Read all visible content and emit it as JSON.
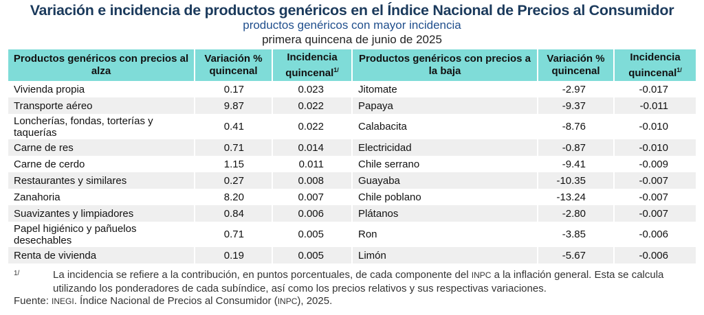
{
  "title": "Variación e incidencia de productos genéricos en el Índice Nacional de Precios al Consumidor",
  "subtitle": "productos genéricos con mayor incidencia",
  "period": "primera quincena de junio de 2025",
  "headers": {
    "up_product": "Productos genéricos con precios al alza",
    "up_variation": "Variación % quincenal",
    "up_incidence": "Incidencia quincenal",
    "down_product": "Productos genéricos con precios a la baja",
    "down_variation": "Variación % quincenal",
    "down_incidence": "Incidencia quincenal",
    "footnote_mark": "1/"
  },
  "rows": [
    {
      "up": "Vivienda propia",
      "up_var": "0.17",
      "up_inc": "0.023",
      "down": "Jitomate",
      "down_var": "-2.97",
      "down_inc": "-0.017"
    },
    {
      "up": "Transporte aéreo",
      "up_var": "9.87",
      "up_inc": "0.022",
      "down": "Papaya",
      "down_var": "-9.37",
      "down_inc": "-0.011"
    },
    {
      "up": "Loncherías, fondas, torterías y taquerías",
      "up_var": "0.41",
      "up_inc": "0.022",
      "down": "Calabacita",
      "down_var": "-8.76",
      "down_inc": "-0.010"
    },
    {
      "up": "Carne de res",
      "up_var": "0.71",
      "up_inc": "0.014",
      "down": "Electricidad",
      "down_var": "-0.87",
      "down_inc": "-0.010"
    },
    {
      "up": "Carne de cerdo",
      "up_var": "1.15",
      "up_inc": "0.011",
      "down": "Chile serrano",
      "down_var": "-9.41",
      "down_inc": "-0.009"
    },
    {
      "up": "Restaurantes y similares",
      "up_var": "0.27",
      "up_inc": "0.008",
      "down": "Guayaba",
      "down_var": "-10.35",
      "down_inc": "-0.007"
    },
    {
      "up": "Zanahoria",
      "up_var": "8.20",
      "up_inc": "0.007",
      "down": "Chile poblano",
      "down_var": "-13.24",
      "down_inc": "-0.007"
    },
    {
      "up": "Suavizantes y limpiadores",
      "up_var": "0.84",
      "up_inc": "0.006",
      "down": "Plátanos",
      "down_var": "-2.80",
      "down_inc": "-0.007"
    },
    {
      "up": "Papel higiénico y pañuelos desechables",
      "up_var": "0.71",
      "up_inc": "0.005",
      "down": "Ron",
      "down_var": "-3.85",
      "down_inc": "-0.006"
    },
    {
      "up": "Renta de vivienda",
      "up_var": "0.19",
      "up_inc": "0.005",
      "down": "Limón",
      "down_var": "-5.67",
      "down_inc": "-0.006"
    }
  ],
  "footnote": {
    "mark": "1/",
    "text_1": "La incidencia se refiere a la contribución, en puntos porcentuales, de cada componente del ",
    "inpc": "INPC",
    "text_2": " a la inflación general. Esta se calcula utilizando los ponderadores de cada subíndice, así como los precios relativos y sus respectivas variaciones."
  },
  "source": {
    "label": "Fuente: ",
    "inegi": "INEGI",
    "text_1": ". Índice Nacional de Precios al Consumidor (",
    "inpc": "INPC",
    "text_2": "), 2025."
  },
  "colors": {
    "header_bg": "#7fdcd8",
    "title": "#1b3a5c",
    "subtitle": "#1f4e8c",
    "row_alt": "#efefef"
  }
}
